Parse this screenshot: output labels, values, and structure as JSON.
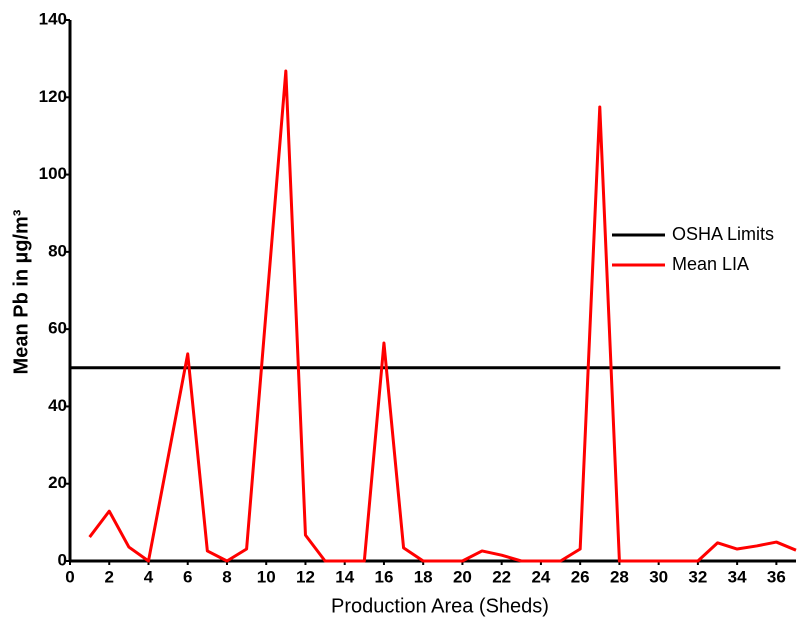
{
  "chart_data": {
    "type": "line",
    "xlabel": "Production Area (Sheds)",
    "ylabel": "Mean Pb in µg/m³",
    "xlim": [
      0,
      37
    ],
    "ylim": [
      0,
      140
    ],
    "xticks": [
      0,
      2,
      4,
      6,
      8,
      10,
      12,
      14,
      16,
      18,
      20,
      22,
      24,
      26,
      28,
      30,
      32,
      34,
      36
    ],
    "yticks": [
      0,
      20,
      40,
      60,
      80,
      100,
      120,
      140
    ],
    "legend": "right",
    "series": [
      {
        "name": "OSHA Limits",
        "color": "#000000",
        "x": [
          0,
          36.2
        ],
        "values": [
          50,
          50
        ]
      },
      {
        "name": "Mean LIA",
        "color": "#ff0000",
        "x": [
          1,
          2,
          3,
          4,
          6,
          7,
          8,
          9,
          11,
          12,
          13,
          14,
          15,
          16,
          17,
          18,
          19,
          20,
          21,
          22,
          23,
          24,
          25,
          26,
          27,
          28,
          29,
          30,
          31,
          32,
          33,
          34,
          35,
          36,
          37
        ],
        "values": [
          6.2,
          12.9,
          3.6,
          0,
          53.6,
          2.6,
          0,
          3.1,
          126.8,
          6.7,
          0,
          0,
          0,
          56.4,
          3.4,
          0,
          0,
          0,
          2.6,
          1.5,
          0,
          0,
          0,
          3.1,
          117.5,
          0,
          0,
          0,
          0,
          0,
          4.7,
          3.1,
          3.9,
          4.9,
          2.8
        ]
      }
    ]
  }
}
